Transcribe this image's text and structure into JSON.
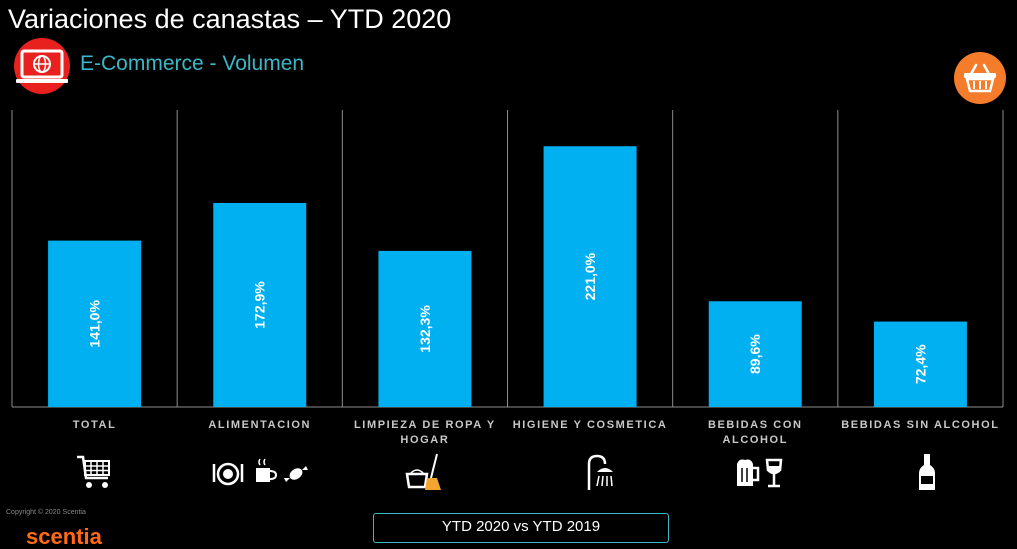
{
  "header": {
    "title": "Variaciones de canastas – YTD 2020",
    "subtitle": "E-Commerce - Volumen"
  },
  "icons": {
    "ecommerce": "laptop-globe-icon",
    "basket": "shopping-basket-icon"
  },
  "chart_data": {
    "type": "bar",
    "categories": [
      "TOTAL",
      "ALIMENTACION",
      "LIMPIEZA DE ROPA Y HOGAR",
      "HIGIENE Y COSMETICA",
      "BEBIDAS CON ALCOHOL",
      "BEBIDAS SIN ALCOHOL"
    ],
    "values": [
      141.0,
      172.9,
      132.3,
      221.0,
      89.6,
      72.4
    ],
    "data_labels": [
      "141,0%",
      "172,9%",
      "132,3%",
      "221,0%",
      "89,6%",
      "72,4%"
    ],
    "ylim": [
      0,
      250
    ],
    "grid": false,
    "bar_color": "#00b0f0",
    "label_color": "#ffffff"
  },
  "category_icons": [
    "shopping-cart-icon",
    "food-drink-candy-icon",
    "bucket-broom-icon",
    "shower-icon",
    "beer-wine-icon",
    "bottle-icon"
  ],
  "footer": {
    "copyright": "Copyright © 2020 Scentia",
    "brand": "scentia",
    "period": "YTD 2020 vs YTD 2019"
  },
  "colors": {
    "background": "#000000",
    "accent": "#3ab7c6",
    "brand": "#ff6a13",
    "ecommerce_icon": "#e8211f",
    "basket_icon": "#f47c2a"
  }
}
